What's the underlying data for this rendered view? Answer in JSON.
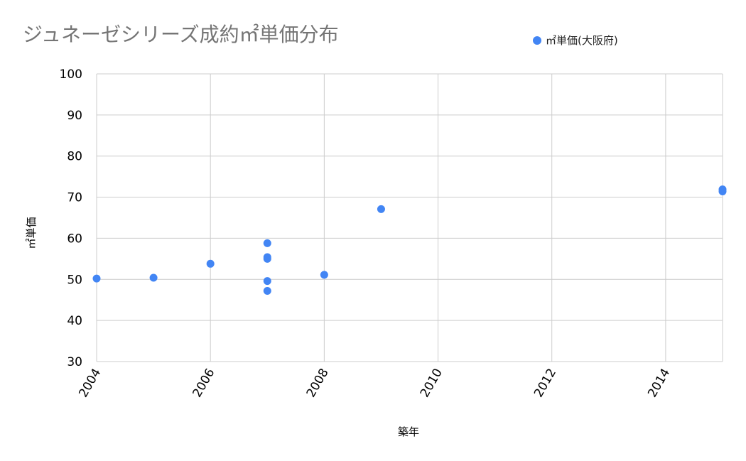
{
  "chart_data": {
    "type": "scatter",
    "title": "ジュネーゼシリーズ成約㎡単価分布",
    "xlabel": "築年",
    "ylabel": "㎡単価",
    "xlim": [
      2004,
      2015
    ],
    "ylim": [
      30,
      100
    ],
    "xticks": [
      "2004",
      "2006",
      "2008",
      "2010",
      "2012",
      "2014"
    ],
    "yticks": [
      "30",
      "40",
      "50",
      "60",
      "70",
      "80",
      "90",
      "100"
    ],
    "grid": true,
    "legend_position": "top-right",
    "series": [
      {
        "name": "㎡単価(大阪府)",
        "color": "#4285f4",
        "points": [
          {
            "x": 2004,
            "y": 50.2
          },
          {
            "x": 2005,
            "y": 50.4
          },
          {
            "x": 2006,
            "y": 53.8
          },
          {
            "x": 2007,
            "y": 58.8
          },
          {
            "x": 2007,
            "y": 55.4
          },
          {
            "x": 2007,
            "y": 55.0
          },
          {
            "x": 2007,
            "y": 49.6
          },
          {
            "x": 2007,
            "y": 47.2
          },
          {
            "x": 2008,
            "y": 51.1
          },
          {
            "x": 2009,
            "y": 67.1
          },
          {
            "x": 2015,
            "y": 71.9
          },
          {
            "x": 2015,
            "y": 71.4
          }
        ]
      }
    ]
  }
}
